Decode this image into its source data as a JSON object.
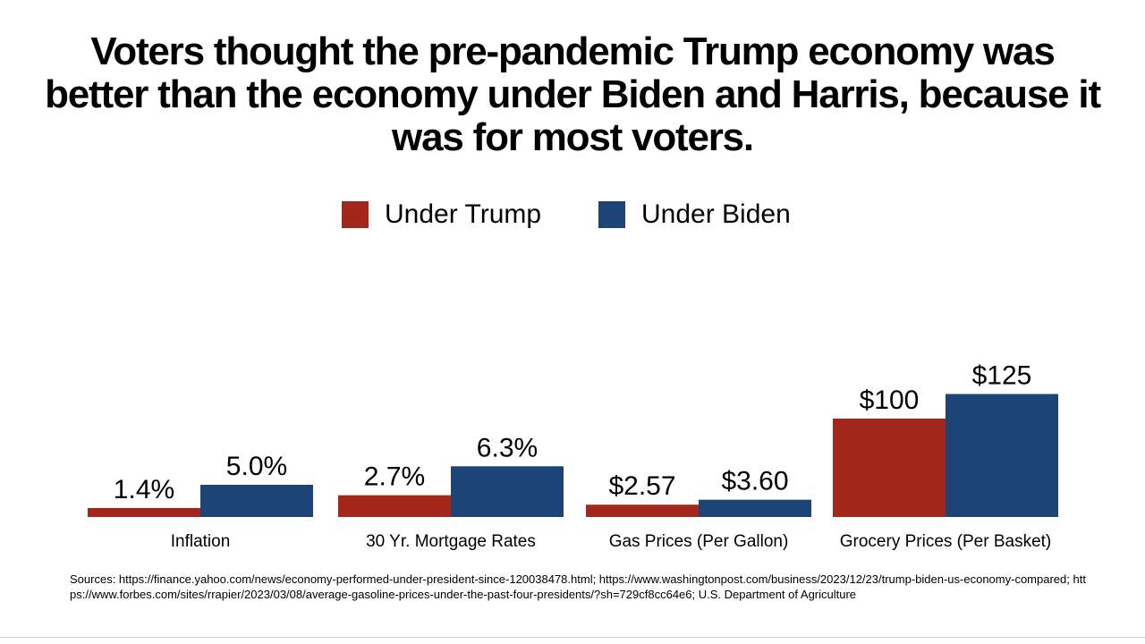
{
  "title_lines": [
    "Voters thought the pre-pandemic Trump economy was",
    "better than the economy under Biden and Harris, because it",
    "was for most voters."
  ],
  "colors": {
    "trump": "#A3281B",
    "biden": "#1D4477"
  },
  "chart_data": {
    "type": "bar",
    "categories": [
      "Inflation",
      "30 Yr. Mortgage Rates",
      "Gas Prices (Per Gallon)",
      "Grocery Prices (Per Basket)"
    ],
    "series": [
      {
        "name": "Under Trump",
        "values": [
          1.4,
          2.7,
          2.57,
          100
        ],
        "labels": [
          "1.4%",
          "2.7%",
          "$2.57",
          "$100"
        ]
      },
      {
        "name": "Under Biden",
        "values": [
          5.0,
          6.3,
          3.6,
          125
        ],
        "labels": [
          "5.0%",
          "6.3%",
          "$3.60",
          "$125"
        ]
      }
    ],
    "legend": "top-center",
    "grid": false,
    "y_axis_visible": false
  },
  "sources": "Sources:  https://finance.yahoo.com/news/economy-performed-under-president-since-120038478.html; https://www.washingtonpost.com/business/2023/12/23/trump-biden-us-economy-compared; https://www.forbes.com/sites/rrapier/2023/03/08/average-gasoline-prices-under-the-past-four-presidents/?sh=729cf8cc64e6; U.S. Department of Agriculture"
}
